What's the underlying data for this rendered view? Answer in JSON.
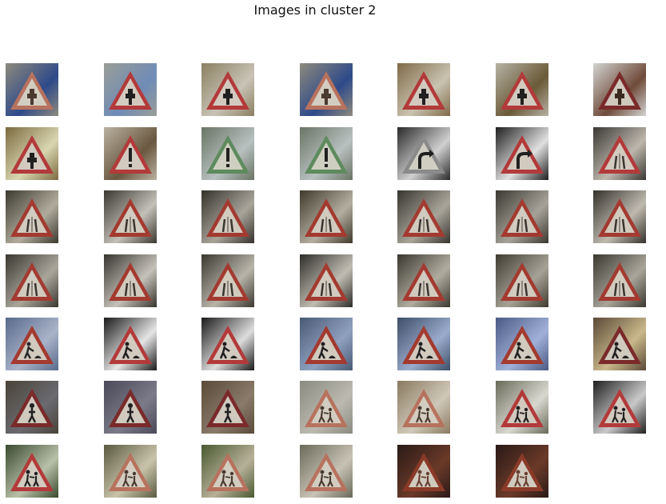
{
  "figure": {
    "title": "Images in cluster 2"
  },
  "grid": {
    "rows": 7,
    "cols": 7,
    "tiles": [
      {
        "row": 0,
        "col": 0,
        "sign": "priority",
        "bg": "#8e8a7c",
        "bg2": "#2e4a8a",
        "border": "#b7725e",
        "symbol": "#4a3a30"
      },
      {
        "row": 0,
        "col": 1,
        "sign": "priority",
        "bg": "#9a9e96",
        "bg2": "#6f8bb7",
        "border": "#b33a3a",
        "symbol": "#202020"
      },
      {
        "row": 0,
        "col": 2,
        "sign": "priority",
        "bg": "#8a7f60",
        "bg2": "#c8c3b6",
        "border": "#b33a3a",
        "symbol": "#202020"
      },
      {
        "row": 0,
        "col": 3,
        "sign": "priority",
        "bg": "#8e8a7c",
        "bg2": "#2e4a8a",
        "border": "#b7725e",
        "symbol": "#4a3a30"
      },
      {
        "row": 0,
        "col": 4,
        "sign": "priority",
        "bg": "#7f6a48",
        "bg2": "#c9c3b0",
        "border": "#b33a3a",
        "symbol": "#202020"
      },
      {
        "row": 0,
        "col": 5,
        "sign": "priority",
        "bg": "#b7b2a5",
        "bg2": "#6a5a38",
        "border": "#b33a3a",
        "symbol": "#202020"
      },
      {
        "row": 0,
        "col": 6,
        "sign": "priority",
        "bg": "#d3d4d2",
        "bg2": "#6f4b3a",
        "border": "#7a2a2a",
        "symbol": "#3a2a20"
      },
      {
        "row": 1,
        "col": 0,
        "sign": "priority",
        "bg": "#7c6a40",
        "bg2": "#d8d6b0",
        "border": "#b33a3a",
        "symbol": "#202020"
      },
      {
        "row": 1,
        "col": 1,
        "sign": "warning",
        "bg": "#b9b1a0",
        "bg2": "#6a5840",
        "border": "#b33a3a",
        "symbol": "#202020"
      },
      {
        "row": 1,
        "col": 2,
        "sign": "warning",
        "bg": "#6a7464",
        "bg2": "#b8c0c0",
        "border": "#5e8a5e",
        "symbol": "#202020"
      },
      {
        "row": 1,
        "col": 3,
        "sign": "warning",
        "bg": "#6a7464",
        "bg2": "#b8c0c0",
        "border": "#5e8a5e",
        "symbol": "#202020"
      },
      {
        "row": 1,
        "col": 4,
        "sign": "curve",
        "bg": "#2a2a2a",
        "bg2": "#d0d0d0",
        "border": "#8a8a8a",
        "symbol": "#202020"
      },
      {
        "row": 1,
        "col": 5,
        "sign": "curve",
        "bg": "#1f1f1f",
        "bg2": "#e0e0e0",
        "border": "#b33a3a",
        "symbol": "#202020"
      },
      {
        "row": 1,
        "col": 6,
        "sign": "narrow",
        "bg": "#3a3834",
        "bg2": "#bdb7ad",
        "border": "#b33a3a",
        "symbol": "#3a3430"
      },
      {
        "row": 2,
        "col": 0,
        "sign": "narrow",
        "bg": "#3c3a30",
        "bg2": "#b0ab9c",
        "border": "#a33a30",
        "symbol": "#3a3430"
      },
      {
        "row": 2,
        "col": 1,
        "sign": "narrow",
        "bg": "#3a3830",
        "bg2": "#c3c0b8",
        "border": "#a33a30",
        "symbol": "#3a3430"
      },
      {
        "row": 2,
        "col": 2,
        "sign": "narrow",
        "bg": "#34322c",
        "bg2": "#a8a49a",
        "border": "#a33a30",
        "symbol": "#3a3430"
      },
      {
        "row": 2,
        "col": 3,
        "sign": "narrow",
        "bg": "#3f3a2c",
        "bg2": "#b3aea0",
        "border": "#a33a30",
        "symbol": "#3a3430"
      },
      {
        "row": 2,
        "col": 4,
        "sign": "narrow",
        "bg": "#36352f",
        "bg2": "#a9a59a",
        "border": "#a33a30",
        "symbol": "#3a3430"
      },
      {
        "row": 2,
        "col": 5,
        "sign": "narrow",
        "bg": "#3a3830",
        "bg2": "#a7a39a",
        "border": "#a33a30",
        "symbol": "#3a3430"
      },
      {
        "row": 2,
        "col": 6,
        "sign": "narrow",
        "bg": "#34322c",
        "bg2": "#bfbab0",
        "border": "#a33a30",
        "symbol": "#3a3430"
      },
      {
        "row": 3,
        "col": 0,
        "sign": "narrow",
        "bg": "#3a3830",
        "bg2": "#aaa69c",
        "border": "#a33a30",
        "symbol": "#3a3430"
      },
      {
        "row": 3,
        "col": 1,
        "sign": "narrow",
        "bg": "#36342e",
        "bg2": "#c5c2ba",
        "border": "#a33a30",
        "symbol": "#3a3430"
      },
      {
        "row": 3,
        "col": 2,
        "sign": "narrow",
        "bg": "#3a3830",
        "bg2": "#b8b4aa",
        "border": "#a33a30",
        "symbol": "#3a3430"
      },
      {
        "row": 3,
        "col": 3,
        "sign": "narrow",
        "bg": "#2e2d29",
        "bg2": "#c0bcb2",
        "border": "#a33a30",
        "symbol": "#3a3430"
      },
      {
        "row": 3,
        "col": 4,
        "sign": "narrow",
        "bg": "#3a3830",
        "bg2": "#b0ac9f",
        "border": "#a33a30",
        "symbol": "#3a3430"
      },
      {
        "row": 3,
        "col": 5,
        "sign": "narrow",
        "bg": "#403c32",
        "bg2": "#a6a298",
        "border": "#a33a30",
        "symbol": "#3a3430"
      },
      {
        "row": 3,
        "col": 6,
        "sign": "narrow",
        "bg": "#3a3830",
        "bg2": "#a9a59b",
        "border": "#a33a30",
        "symbol": "#3a3430"
      },
      {
        "row": 4,
        "col": 0,
        "sign": "roadwork",
        "bg": "#596a8c",
        "bg2": "#a9b3c8",
        "border": "#a33a30",
        "symbol": "#2a2a2a"
      },
      {
        "row": 4,
        "col": 1,
        "sign": "roadwork",
        "bg": "#1a1a1a",
        "bg2": "#e5e5e5",
        "border": "#b33a3a",
        "symbol": "#202020"
      },
      {
        "row": 4,
        "col": 2,
        "sign": "roadwork",
        "bg": "#1a1a1a",
        "bg2": "#dcdcdc",
        "border": "#b33a3a",
        "symbol": "#202020"
      },
      {
        "row": 4,
        "col": 3,
        "sign": "roadwork",
        "bg": "#4a5a74",
        "bg2": "#8fa0c0",
        "border": "#a33a30",
        "symbol": "#202020"
      },
      {
        "row": 4,
        "col": 4,
        "sign": "roadwork",
        "bg": "#3e4e68",
        "bg2": "#9aabcc",
        "border": "#a33a30",
        "symbol": "#202020"
      },
      {
        "row": 4,
        "col": 5,
        "sign": "roadwork",
        "bg": "#4a5a84",
        "bg2": "#a0b0d8",
        "border": "#a33a30",
        "symbol": "#202020"
      },
      {
        "row": 4,
        "col": 6,
        "sign": "roadwork",
        "bg": "#5a4a38",
        "bg2": "#c9b88a",
        "border": "#7a2a2a",
        "symbol": "#202020"
      },
      {
        "row": 5,
        "col": 0,
        "sign": "pedestrian",
        "bg": "#4a4438",
        "bg2": "#6a6a70",
        "border": "#7a2a2a",
        "symbol": "#202020"
      },
      {
        "row": 5,
        "col": 1,
        "sign": "pedestrian",
        "bg": "#4a4a5a",
        "bg2": "#7a7a88",
        "border": "#7a2a2a",
        "symbol": "#202020"
      },
      {
        "row": 5,
        "col": 2,
        "sign": "pedestrian",
        "bg": "#5a4a38",
        "bg2": "#8a7a6a",
        "border": "#7a2a2a",
        "symbol": "#202020"
      },
      {
        "row": 5,
        "col": 3,
        "sign": "children",
        "bg": "#8a8a80",
        "bg2": "#bcbab0",
        "border": "#b7725e",
        "symbol": "#4a3a30"
      },
      {
        "row": 5,
        "col": 4,
        "sign": "children",
        "bg": "#8a7a60",
        "bg2": "#cfc8b8",
        "border": "#b7725e",
        "symbol": "#4a3a30"
      },
      {
        "row": 5,
        "col": 5,
        "sign": "children",
        "bg": "#6a6a5a",
        "bg2": "#d8d8d0",
        "border": "#b33a3a",
        "symbol": "#202020"
      },
      {
        "row": 5,
        "col": 6,
        "sign": "children",
        "bg": "#1f1f1f",
        "bg2": "#c9c9c9",
        "border": "#b33a3a",
        "symbol": "#202020"
      },
      {
        "row": 6,
        "col": 0,
        "sign": "children",
        "bg": "#3a4a30",
        "bg2": "#b8c0a8",
        "border": "#b33a3a",
        "symbol": "#202020"
      },
      {
        "row": 6,
        "col": 1,
        "sign": "children",
        "bg": "#5a5a40",
        "bg2": "#c8c3aa",
        "border": "#b7725e",
        "symbol": "#4a3a30"
      },
      {
        "row": 6,
        "col": 2,
        "sign": "children",
        "bg": "#4a5a30",
        "bg2": "#b7b09a",
        "border": "#b7725e",
        "symbol": "#4a3a30"
      },
      {
        "row": 6,
        "col": 3,
        "sign": "children",
        "bg": "#6a6a5a",
        "bg2": "#c8c2b5",
        "border": "#b7725e",
        "symbol": "#4a3a30"
      },
      {
        "row": 6,
        "col": 4,
        "sign": "children",
        "bg": "#2a1a18",
        "bg2": "#6a3a28",
        "border": "#8a3a28",
        "symbol": "#6a4030"
      },
      {
        "row": 6,
        "col": 5,
        "sign": "children",
        "bg": "#2a1a18",
        "bg2": "#6a3a28",
        "border": "#8a3a28",
        "symbol": "#6a4030"
      }
    ]
  }
}
